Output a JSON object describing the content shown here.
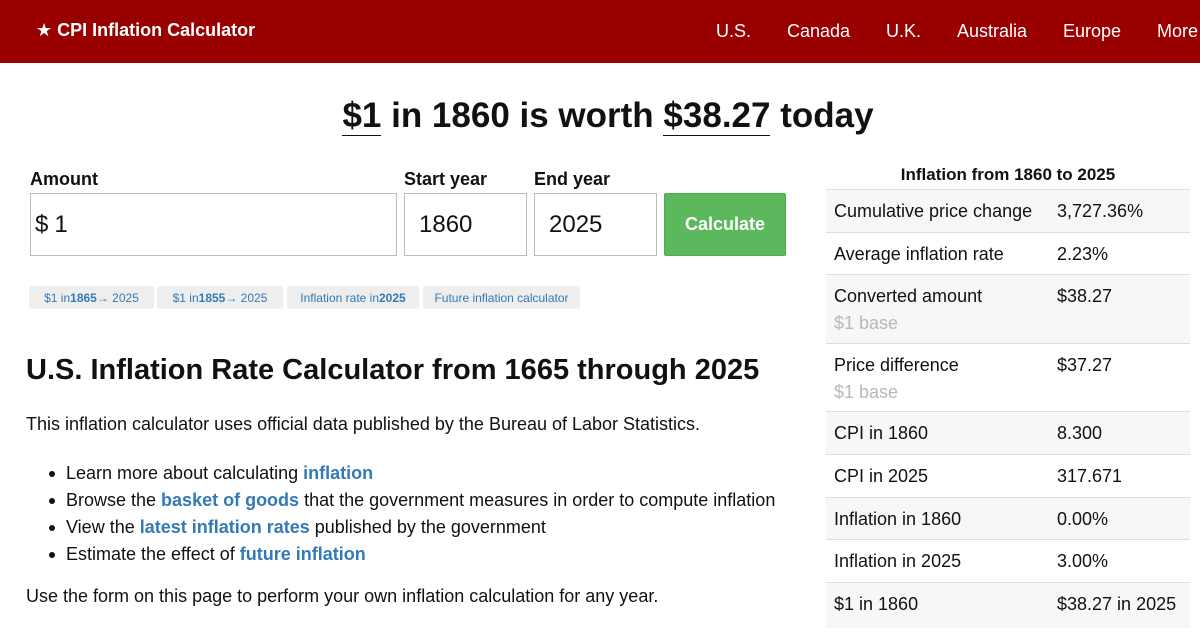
{
  "header": {
    "brand_star": "★",
    "brand": "CPI Inflation Calculator",
    "nav": [
      "U.S.",
      "Canada",
      "U.K.",
      "Australia",
      "Europe",
      "More"
    ]
  },
  "headline": {
    "amount": "$1",
    "mid1": " in 1860 is worth ",
    "result": "$38.27",
    "mid2": " today"
  },
  "form": {
    "amount_label": "Amount",
    "currency": "$",
    "amount_value": "1",
    "start_label": "Start year",
    "start_value": "1860",
    "end_label": "End year",
    "end_value": "2025",
    "button": "Calculate"
  },
  "chips": [
    {
      "a": "$1 in ",
      "b": "1865",
      "c": " → 2025"
    },
    {
      "a": "$1 in ",
      "b": "1855",
      "c": " → 2025"
    },
    {
      "a": "Inflation rate in ",
      "b": "2025",
      "c": ""
    },
    {
      "a": "Future inflation calculator",
      "b": "",
      "c": ""
    }
  ],
  "content": {
    "title": "U.S. Inflation Rate Calculator from 1665 through 2025",
    "intro": "This inflation calculator uses official data published by the Bureau of Labor Statistics.",
    "bullets": [
      {
        "pre": "Learn more about calculating ",
        "link": "inflation",
        "post": ""
      },
      {
        "pre": "Browse the ",
        "link": "basket of goods",
        "post": " that the government measures in order to compute inflation"
      },
      {
        "pre": "View the ",
        "link": "latest inflation rates",
        "post": " published by the government"
      },
      {
        "pre": "Estimate the effect of ",
        "link": "future inflation",
        "post": ""
      }
    ],
    "outro": "Use the form on this page to perform your own inflation calculation for any year."
  },
  "sidebar": {
    "title": "Inflation from 1860 to 2025",
    "rows": [
      {
        "k": "Cumulative price change",
        "sub": "",
        "v": "3,727.36%"
      },
      {
        "k": "Average inflation rate",
        "sub": "",
        "v": "2.23%"
      },
      {
        "k": "Converted amount",
        "sub": "$1 base",
        "v": "$38.27"
      },
      {
        "k": "Price difference",
        "sub": "$1 base",
        "v": "$37.27"
      },
      {
        "k": "CPI in 1860",
        "sub": "",
        "v": "8.300"
      },
      {
        "k": "CPI in 2025",
        "sub": "",
        "v": "317.671"
      },
      {
        "k": "Inflation in 1860",
        "sub": "",
        "v": "0.00%"
      },
      {
        "k": "Inflation in 2025",
        "sub": "",
        "v": "3.00%"
      },
      {
        "k": "$1 in 1860",
        "sub": "",
        "v": "$38.27 in 2025"
      }
    ]
  },
  "colors": {
    "header_bg": "#990000",
    "button_bg": "#5cb85c",
    "link": "#337ab7"
  }
}
